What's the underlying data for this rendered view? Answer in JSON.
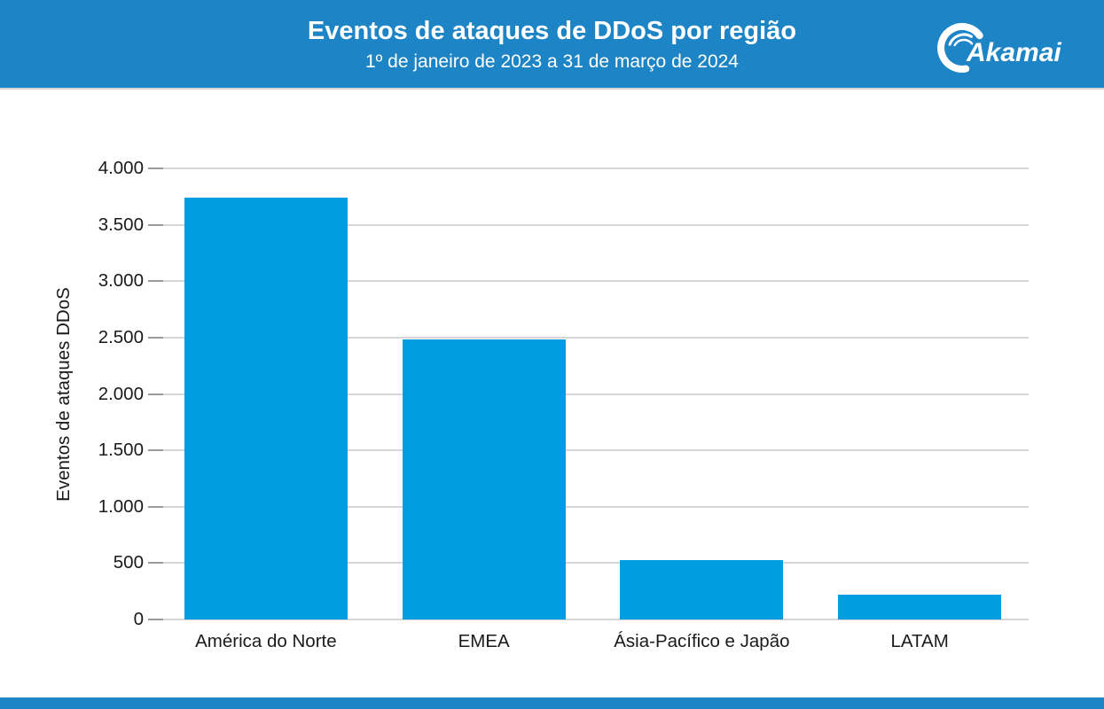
{
  "header": {
    "title": "Eventos de ataques de DDoS por região",
    "subtitle": "1º de janeiro de 2023 a 31 de março de 2024",
    "logo_text": "Akamai",
    "background_color": "#1d84c5",
    "text_color": "#ffffff"
  },
  "footer": {
    "background_color": "#1d84c5"
  },
  "chart_data": {
    "type": "bar",
    "title": "Eventos de ataques de DDoS por região",
    "subtitle": "1º de janeiro de 2023 a 31 de março de 2024",
    "categories": [
      "América do Norte",
      "EMEA",
      "Ásia-Pacífico e Japão",
      "LATAM"
    ],
    "values": [
      3740,
      2480,
      530,
      220
    ],
    "xlabel": "",
    "ylabel": "Eventos de ataques DDoS",
    "ylim": [
      0,
      4000
    ],
    "ytick_step": 500,
    "ytick_labels": [
      "0",
      "500",
      "1.000",
      "1.500",
      "2.000",
      "2.500",
      "3.000",
      "3.500",
      "4.000"
    ],
    "grid": true,
    "legend_position": "none",
    "bar_color": "#009de0",
    "grid_color": "#d6d6d6",
    "axis_text_color": "#1a1a1a"
  }
}
